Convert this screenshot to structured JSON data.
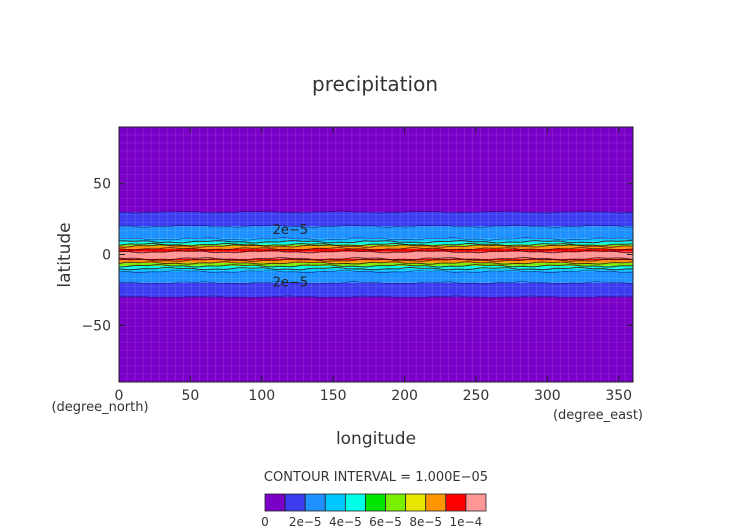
{
  "chart_data": {
    "type": "heatmap",
    "title": "precipitation",
    "xlabel": "longitude",
    "ylabel": "latitude",
    "x_unit": "(degree_east)",
    "y_unit": "(degree_north)",
    "xlim": [
      0,
      360
    ],
    "ylim": [
      -90,
      90
    ],
    "x_ticks": [
      0,
      50,
      100,
      150,
      200,
      250,
      300,
      350
    ],
    "x_tick_labels": [
      "0",
      "50",
      "100",
      "150",
      "200",
      "250",
      "300",
      "350"
    ],
    "y_ticks": [
      -50,
      0,
      50
    ],
    "y_tick_labels": [
      "−50",
      "0",
      "50"
    ],
    "contour_interval_text": "CONTOUR INTERVAL = 1.000E−05",
    "colorbar": {
      "levels": [
        0,
        1e-05,
        2e-05,
        3e-05,
        4e-05,
        5e-05,
        6e-05,
        7e-05,
        8e-05,
        9e-05,
        0.0001
      ],
      "colors": [
        "#7a00c8",
        "#3c3cf0",
        "#1e90ff",
        "#00c8ff",
        "#00ffe6",
        "#00e600",
        "#78f000",
        "#e6e600",
        "#ff9600",
        "#ff0000",
        "#ff9696"
      ],
      "tick_labels": [
        "0",
        "2e−5",
        "4e−5",
        "6e−5",
        "8e−5",
        "1e−4"
      ]
    },
    "bands": [
      {
        "lat_from": -90,
        "lat_to": -30,
        "level": 0
      },
      {
        "lat_from": -30,
        "lat_to": -20,
        "level": 1
      },
      {
        "lat_from": -20,
        "lat_to": -12,
        "level": 2
      },
      {
        "lat_from": -12,
        "lat_to": -10,
        "level": 3
      },
      {
        "lat_from": -10,
        "lat_to": -8,
        "level": 4
      },
      {
        "lat_from": -8,
        "lat_to": -6,
        "level": 6
      },
      {
        "lat_from": -6,
        "lat_to": -4,
        "level": 8
      },
      {
        "lat_from": -4,
        "lat_to": -3,
        "level": 9
      },
      {
        "lat_from": -3,
        "lat_to": 2,
        "level": 10
      },
      {
        "lat_from": 2,
        "lat_to": 4,
        "level": 9
      },
      {
        "lat_from": 4,
        "lat_to": 6,
        "level": 8
      },
      {
        "lat_from": 6,
        "lat_to": 7,
        "level": 6
      },
      {
        "lat_from": 7,
        "lat_to": 9,
        "level": 4
      },
      {
        "lat_from": 9,
        "lat_to": 11,
        "level": 3
      },
      {
        "lat_from": 11,
        "lat_to": 20,
        "level": 2
      },
      {
        "lat_from": 20,
        "lat_to": 30,
        "level": 1
      },
      {
        "lat_from": 30,
        "lat_to": 90,
        "level": 0
      }
    ],
    "contour_labels": [
      {
        "text": "2e−5",
        "lon": 120,
        "lat": 18
      },
      {
        "text": "2e−5",
        "lon": 120,
        "lat": -19
      }
    ]
  }
}
